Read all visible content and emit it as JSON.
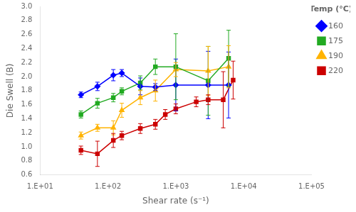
{
  "chart_data": {
    "type": "line",
    "xlabel": "Shear rate (s⁻¹)",
    "ylabel": "Die Swell (B)",
    "legend_title": "Temp (°C)",
    "log": "x",
    "grid": false,
    "legend": "right",
    "xlim": [
      10,
      100000
    ],
    "xticks": [
      {
        "value": 10,
        "label": "1.E+01"
      },
      {
        "value": 100,
        "label": "1.E+02"
      },
      {
        "value": 1000,
        "label": "1.E+03"
      },
      {
        "value": 10000,
        "label": "1.E+04"
      },
      {
        "value": 100000,
        "label": "1.E+05"
      }
    ],
    "ylim": [
      0.6,
      3.0
    ],
    "yticks": [
      0.6,
      0.8,
      {
        "value": 1.0,
        "label": "1.0"
      },
      1.2,
      1.4,
      1.6,
      1.8,
      {
        "value": 2.0,
        "label": "2.0"
      },
      2.2,
      2.4,
      2.6,
      2.8,
      {
        "value": 3.0,
        "label": "3.0"
      }
    ],
    "series": [
      {
        "name": "160",
        "color": "#0000FF",
        "marker": "diamond",
        "x": [
          40,
          70,
          120,
          160,
          300,
          500,
          1000,
          3000,
          6000
        ],
        "values": [
          1.74,
          1.86,
          2.02,
          2.05,
          1.86,
          1.85,
          1.88,
          1.88,
          1.88
        ],
        "yerr": [
          0.04,
          0.06,
          0.08,
          0.05,
          0.12,
          0.05,
          0.37,
          0.48,
          0.47
        ]
      },
      {
        "name": "175",
        "color": "#22AA22",
        "marker": "square",
        "x": [
          40,
          70,
          120,
          160,
          300,
          500,
          1000,
          3000,
          6000
        ],
        "values": [
          1.46,
          1.62,
          1.7,
          1.79,
          1.91,
          2.14,
          2.14,
          1.94,
          2.26
        ],
        "yerr": [
          0.05,
          0.07,
          0.06,
          0.05,
          0.1,
          0.11,
          0.47,
          0.49,
          0.4
        ]
      },
      {
        "name": "190",
        "color": "#FFB300",
        "marker": "triangle",
        "x": [
          40,
          70,
          120,
          160,
          300,
          500,
          1000,
          3000,
          6000
        ],
        "values": [
          1.16,
          1.27,
          1.27,
          1.52,
          1.7,
          1.8,
          2.1,
          2.08,
          2.14
        ],
        "yerr": [
          0.05,
          0.05,
          0.1,
          0.1,
          0.1,
          0.15,
          0.1,
          0.35,
          0.3
        ]
      },
      {
        "name": "220",
        "color": "#CC0000",
        "marker": "square",
        "x": [
          40,
          70,
          120,
          160,
          300,
          500,
          700,
          1000,
          2000,
          3000,
          5000,
          7000
        ],
        "values": [
          0.95,
          0.9,
          1.09,
          1.16,
          1.26,
          1.32,
          1.46,
          1.54,
          1.64,
          1.67,
          1.67,
          1.95
        ],
        "yerr": [
          0.06,
          0.18,
          0.1,
          0.06,
          0.07,
          0.07,
          0.07,
          0.07,
          0.07,
          0.07,
          0.4,
          0.27
        ]
      }
    ]
  }
}
